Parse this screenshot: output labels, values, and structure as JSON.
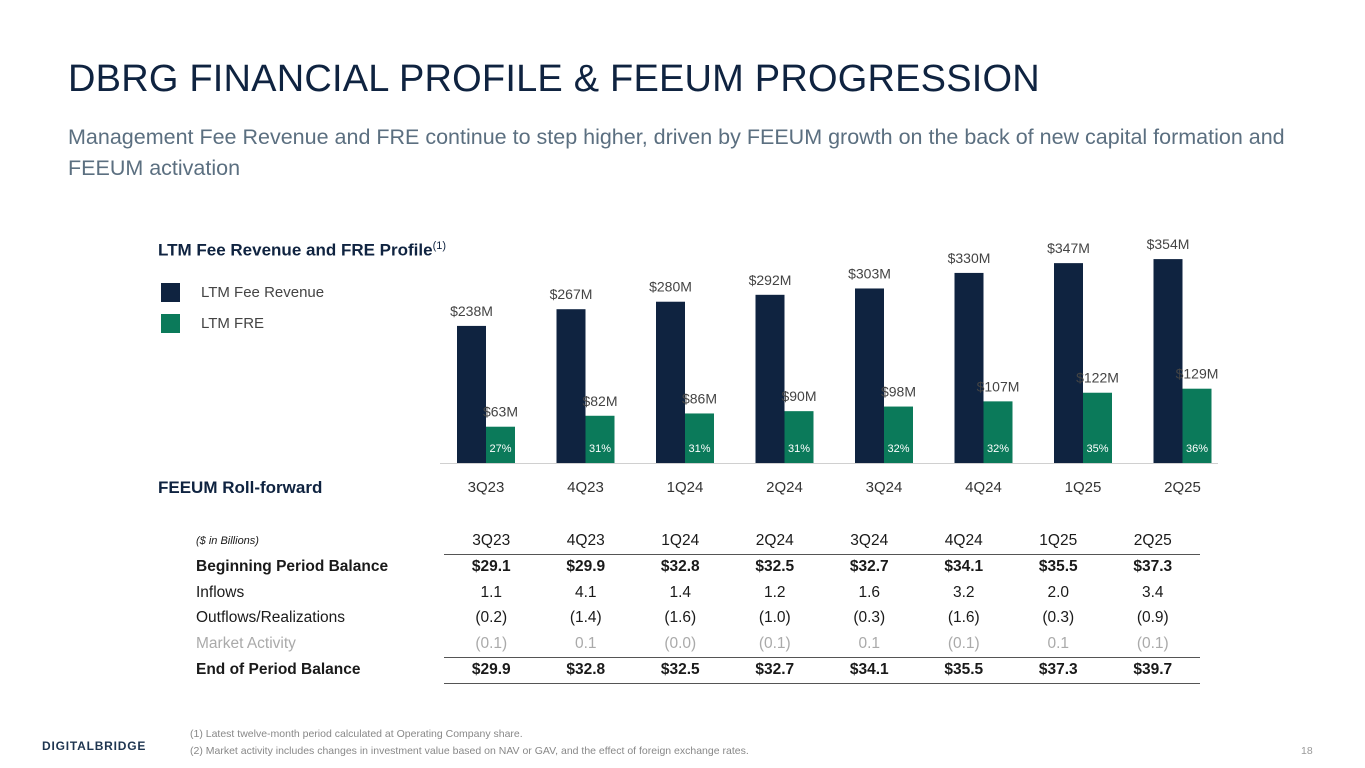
{
  "title": "DBRG FINANCIAL PROFILE & FEEUM PROGRESSION",
  "subtitle": "Management Fee Revenue and FRE continue to step higher, driven by FEEUM growth on the back of new capital formation and FEEUM activation",
  "chart_section": {
    "title": "LTM Fee Revenue and FRE Profile",
    "footnote_ref": "(1)"
  },
  "colors": {
    "fee_revenue": "#0f2340",
    "fre": "#0b7a5a",
    "title": "#0f2340"
  },
  "chart_data": {
    "type": "bar",
    "categories": [
      "3Q23",
      "4Q23",
      "1Q24",
      "2Q24",
      "3Q24",
      "4Q24",
      "1Q25",
      "2Q25"
    ],
    "series": [
      {
        "name": "LTM Fee Revenue",
        "values": [
          238,
          267,
          280,
          292,
          303,
          330,
          347,
          354
        ],
        "labels": [
          "$238M",
          "$267M",
          "$280M",
          "$292M",
          "$303M",
          "$330M",
          "$347M",
          "$354M"
        ]
      },
      {
        "name": "LTM FRE",
        "values": [
          63,
          82,
          86,
          90,
          98,
          107,
          122,
          129
        ],
        "labels": [
          "$63M",
          "$82M",
          "$86M",
          "$90M",
          "$98M",
          "$107M",
          "$122M",
          "$129M"
        ],
        "margins": [
          "27%",
          "31%",
          "31%",
          "31%",
          "32%",
          "32%",
          "35%",
          "36%"
        ]
      }
    ],
    "legend": "left",
    "grid": false
  },
  "table_section": {
    "title": "FEEUM Roll-forward"
  },
  "table": {
    "unit": "($ in Billions)",
    "columns": [
      "3Q23",
      "4Q23",
      "1Q24",
      "2Q24",
      "3Q24",
      "4Q24",
      "1Q25",
      "2Q25"
    ],
    "rows": [
      {
        "label": "Beginning Period Balance",
        "values": [
          "$29.1",
          "$29.9",
          "$32.8",
          "$32.5",
          "$32.7",
          "$34.1",
          "$35.5",
          "$37.3"
        ]
      },
      {
        "label": "Inflows",
        "values": [
          "1.1",
          "4.1",
          "1.4",
          "1.2",
          "1.6",
          "3.2",
          "2.0",
          "3.4"
        ]
      },
      {
        "label": "Outflows/Realizations",
        "values": [
          "(0.2)",
          "(1.4)",
          "(1.6)",
          "(1.0)",
          "(0.3)",
          "(1.6)",
          "(0.3)",
          "(0.9)"
        ]
      },
      {
        "label": "Market Activity",
        "values": [
          "(0.1)",
          "0.1",
          "(0.0)",
          "(0.1)",
          "0.1",
          "(0.1)",
          "0.1",
          "(0.1)"
        ]
      },
      {
        "label": "End of Period Balance",
        "values": [
          "$29.9",
          "$32.8",
          "$32.5",
          "$32.7",
          "$34.1",
          "$35.5",
          "$37.3",
          "$39.7"
        ]
      }
    ]
  },
  "footnotes": [
    "(1)   Latest twelve-month period calculated at Operating Company share.",
    "(2)   Market activity includes changes in investment value based on NAV or GAV, and the effect of foreign exchange rates."
  ],
  "logo": "DIGITALBRIDGE",
  "page_number": "18"
}
